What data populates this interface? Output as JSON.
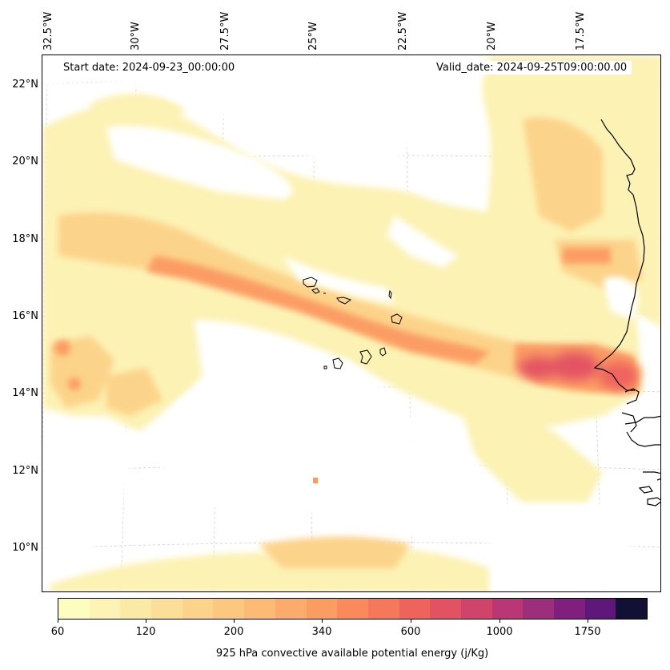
{
  "map": {
    "lon_labels": [
      "32.5°W",
      "30°W",
      "27.5°W",
      "25°W",
      "22.5°W",
      "20°W",
      "17.5°W"
    ],
    "lat_labels": [
      "22°N",
      "20°N",
      "18°N",
      "16°N",
      "14°N",
      "12°N",
      "10°N"
    ],
    "start_date": "Start date: 2024-09-23_00:00:00",
    "valid_date": "Valid_date: 2024-09-25T09:00:00.00",
    "land_outline_color": "#000000",
    "gridline_color": "#cccccc"
  },
  "colorbar": {
    "label": "925 hPa convective available potential energy (j/Kg)",
    "tick_labels": [
      "60",
      "120",
      "200",
      "340",
      "600",
      "1000",
      "1750"
    ],
    "colors": [
      "#fcfdbf",
      "#fcf3b5",
      "#fbe9a6",
      "#fbdf98",
      "#fcd38a",
      "#fcc77e",
      "#fcba75",
      "#fcab6c",
      "#fb9c63",
      "#fa8a5b",
      "#f6775a",
      "#ef635d",
      "#e35263",
      "#d0436b",
      "#b83774",
      "#9d2e7b",
      "#801f7e",
      "#5f177c",
      "#121034"
    ]
  }
}
